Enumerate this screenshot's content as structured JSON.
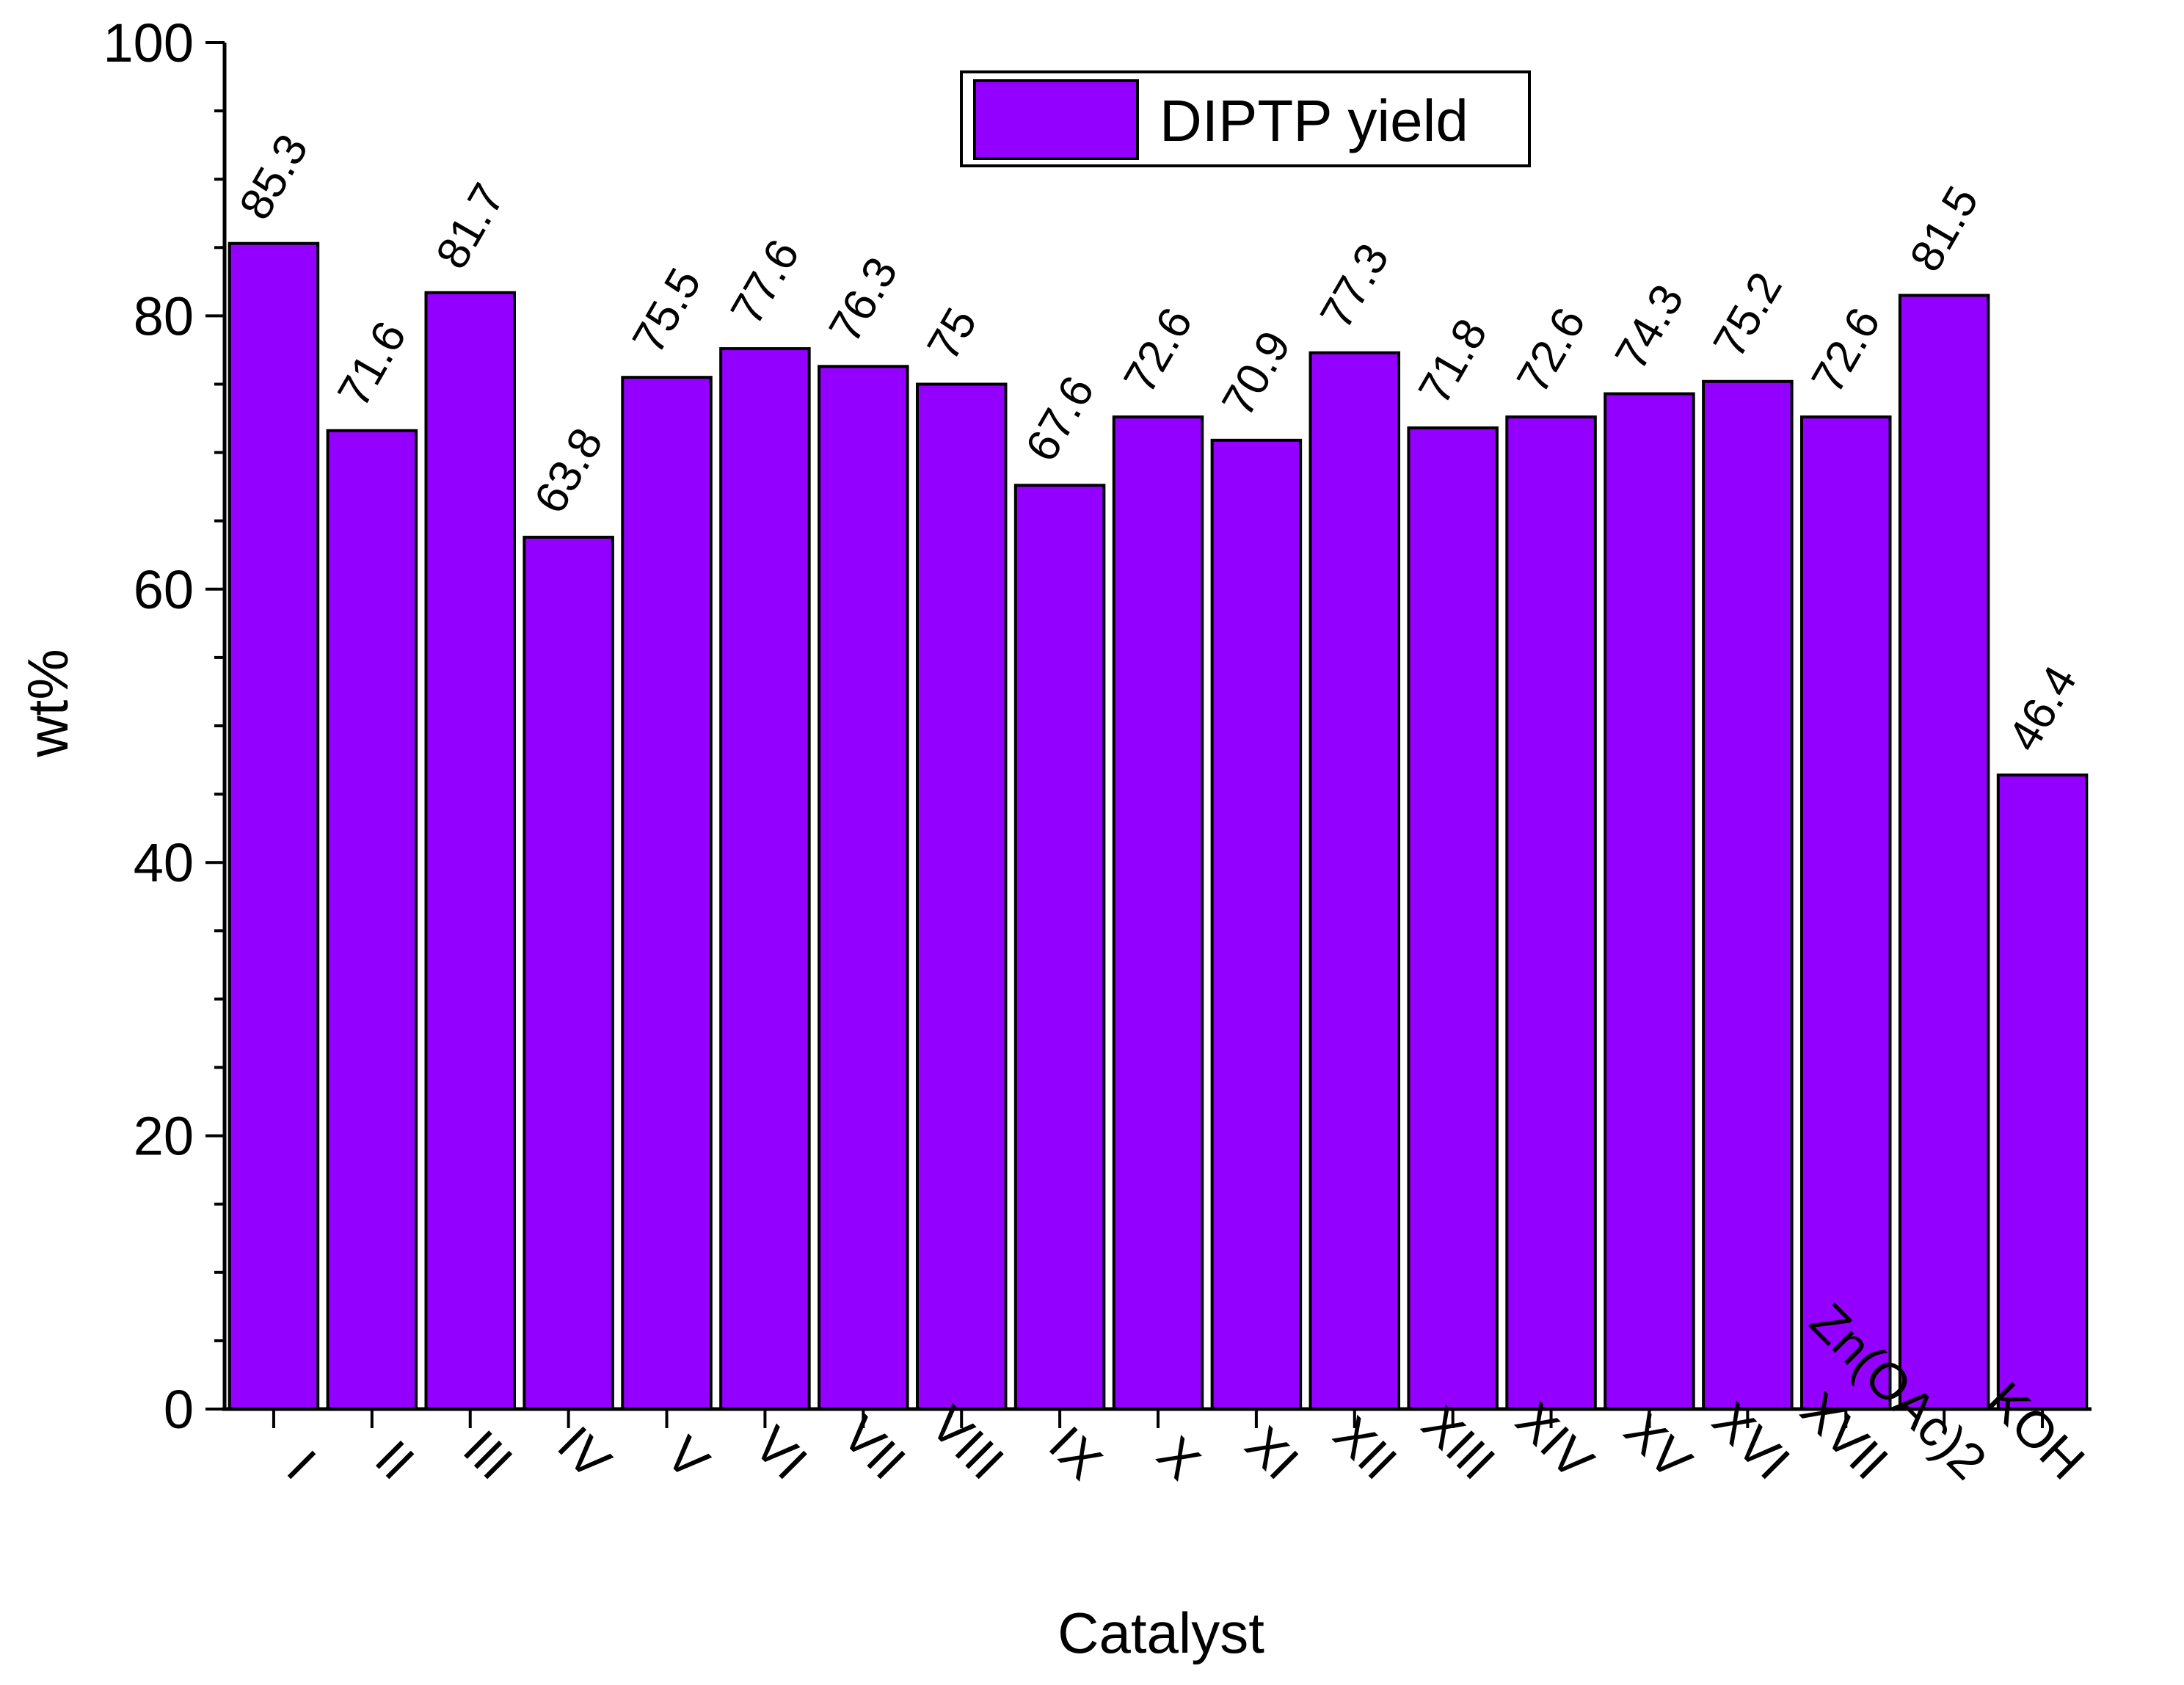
{
  "chart_data": {
    "type": "bar",
    "categories": [
      "I",
      "II",
      "III",
      "IV",
      "V",
      "VI",
      "VII",
      "VIII",
      "IX",
      "X",
      "XI",
      "XII",
      "XIII",
      "XIV",
      "XV",
      "XVI",
      "XVII",
      "Zn(OAc)2",
      "KOH"
    ],
    "series": [
      {
        "name": "DIPTP yield",
        "values": [
          85.3,
          71.6,
          81.7,
          63.8,
          75.5,
          77.6,
          76.3,
          75,
          67.6,
          72.6,
          70.9,
          77.3,
          71.8,
          72.6,
          74.3,
          75.2,
          72.6,
          81.5,
          46.4
        ],
        "data_labels": [
          "85.3",
          "71.6",
          "81.7",
          "63.8",
          "75.5",
          "77.6",
          "76.3",
          "75",
          "67.6",
          "72.6",
          "70.9",
          "77.3",
          "71.8",
          "72.6",
          "74.3",
          "75.2",
          "72.6",
          "81.5",
          "46.4"
        ]
      }
    ],
    "xlabel": "Catalyst",
    "ylabel": "wt%",
    "ylim": [
      0,
      100
    ],
    "yticks": [
      "0",
      "20",
      "40",
      "60",
      "80",
      "100"
    ],
    "grid": false,
    "legend_position": "top-center",
    "bar_color": "#9400ff"
  }
}
